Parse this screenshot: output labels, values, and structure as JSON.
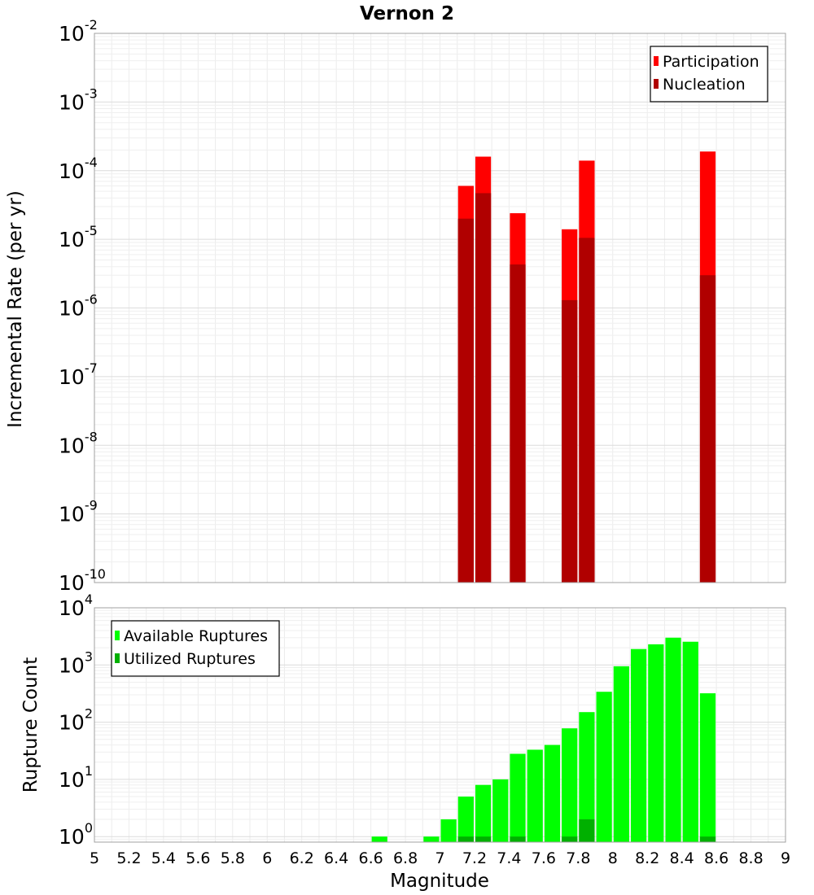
{
  "chart_data": [
    {
      "type": "bar",
      "title": "Vernon 2",
      "xlabel": "Magnitude",
      "ylabel": "Incremental Rate (per yr)",
      "yscale": "log",
      "xlim": [
        5,
        9
      ],
      "ylim": [
        1e-10,
        0.01
      ],
      "y_tick_base": "10",
      "y_tick_exponents": [
        "-10",
        "-9",
        "-8",
        "-7",
        "-6",
        "-5",
        "-4",
        "-3",
        "-2"
      ],
      "grid": true,
      "legend": {
        "position": "top-right",
        "entries": [
          "Participation",
          "Nucleation"
        ]
      },
      "colors": {
        "Participation": "#ff0000",
        "Nucleation": "#b00000"
      },
      "bin_width": 0.1,
      "x": [
        7.15,
        7.25,
        7.45,
        7.75,
        7.85,
        8.55
      ],
      "series": [
        {
          "name": "Participation",
          "values": [
            6e-05,
            0.00016,
            2.4e-05,
            1.4e-05,
            0.00014,
            0.00019
          ]
        },
        {
          "name": "Nucleation",
          "values": [
            2e-05,
            4.7e-05,
            4.3e-06,
            1.3e-06,
            1.05e-05,
            3e-06
          ]
        }
      ]
    },
    {
      "type": "bar",
      "title": "",
      "xlabel": "Magnitude",
      "ylabel": "Rupture Count",
      "yscale": "log",
      "xlim": [
        5,
        9
      ],
      "ylim": [
        0.8,
        10000
      ],
      "y_tick_base": "10",
      "y_tick_exponents": [
        "0",
        "1",
        "2",
        "3",
        "4"
      ],
      "x_ticks": [
        "5",
        "5.2",
        "5.4",
        "5.6",
        "5.8",
        "6",
        "6.2",
        "6.4",
        "6.6",
        "6.8",
        "7",
        "7.2",
        "7.4",
        "7.6",
        "7.8",
        "8",
        "8.2",
        "8.4",
        "8.6",
        "8.8",
        "9"
      ],
      "grid": true,
      "legend": {
        "position": "top-left",
        "entries": [
          "Available Ruptures",
          "Utilized Ruptures"
        ]
      },
      "colors": {
        "Available Ruptures": "#00ff00",
        "Utilized Ruptures": "#00b000"
      },
      "bin_width": 0.1,
      "x": [
        6.65,
        6.95,
        7.05,
        7.15,
        7.25,
        7.35,
        7.45,
        7.55,
        7.65,
        7.75,
        7.85,
        7.95,
        8.05,
        8.15,
        8.25,
        8.35,
        8.45,
        8.55
      ],
      "series": [
        {
          "name": "Available Ruptures",
          "values": [
            1,
            1,
            2,
            5,
            8,
            10,
            28,
            33,
            40,
            78,
            150,
            340,
            950,
            1900,
            2300,
            3000,
            2550,
            320
          ]
        },
        {
          "name": "Utilized Ruptures",
          "values": [
            0,
            0,
            0,
            1,
            1,
            0,
            1,
            0,
            0,
            1,
            2,
            0,
            0,
            0,
            0,
            0,
            0,
            1
          ]
        }
      ]
    }
  ]
}
